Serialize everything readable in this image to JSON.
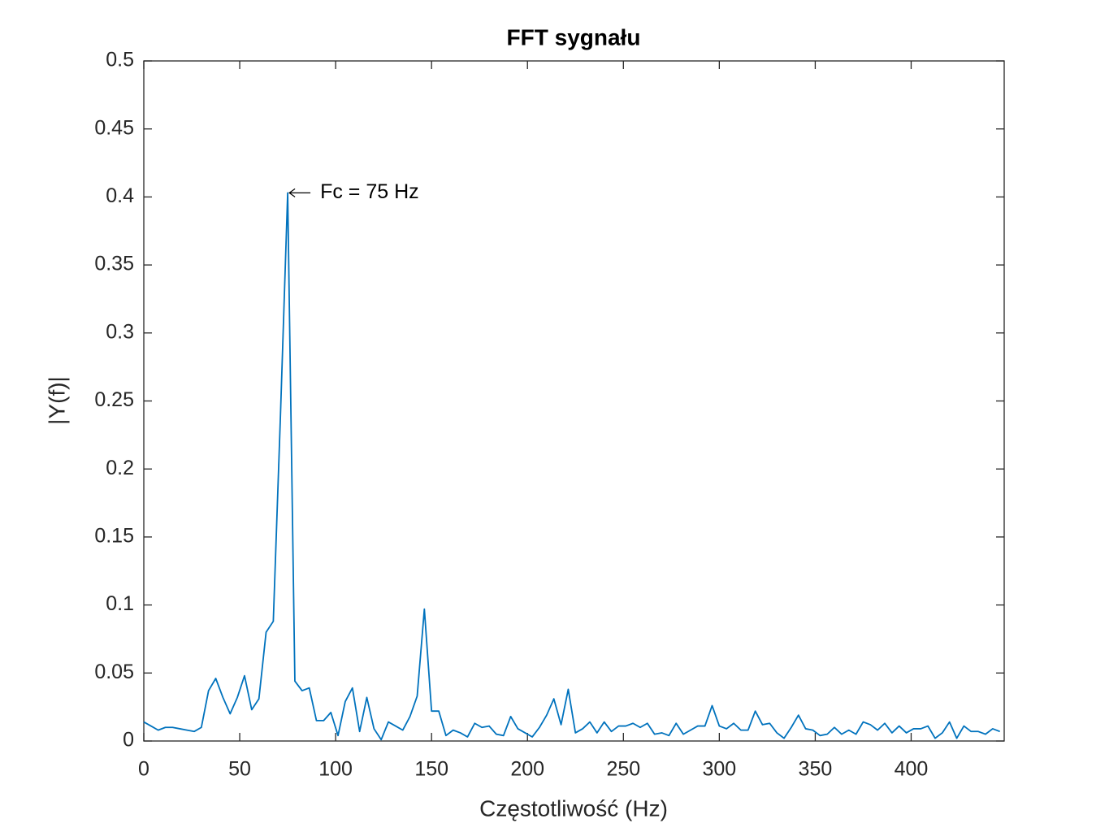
{
  "chart_data": {
    "type": "line",
    "title": "FFT sygnału",
    "x_label": "Częstotliwość (Hz)",
    "y_label": "|Y(f)|",
    "x": [
      0,
      3.75,
      7.5,
      11.25,
      15,
      18.75,
      22.5,
      26.25,
      30,
      33.75,
      37.5,
      41.25,
      45,
      48.75,
      52.5,
      56.25,
      60,
      63.75,
      67.5,
      71.25,
      75,
      78.75,
      82.5,
      86.25,
      90,
      93.75,
      97.5,
      101.25,
      105,
      108.75,
      112.5,
      116.25,
      120,
      123.75,
      127.5,
      131.25,
      135,
      138.75,
      142.5,
      146.25,
      150,
      153.75,
      157.5,
      161.25,
      165,
      168.75,
      172.5,
      176.25,
      180,
      183.75,
      187.5,
      191.25,
      195,
      198.75,
      202.5,
      206.25,
      210,
      213.75,
      217.5,
      221.25,
      225,
      228.75,
      232.5,
      236.25,
      240,
      243.75,
      247.5,
      251.25,
      255,
      258.75,
      262.5,
      266.25,
      270,
      273.75,
      277.5,
      281.25,
      285,
      288.75,
      292.5,
      296.25,
      300,
      303.75,
      307.5,
      311.25,
      315,
      318.75,
      322.5,
      326.25,
      330,
      333.75,
      337.5,
      341.25,
      345,
      348.75,
      352.5,
      356.25,
      360,
      363.75,
      367.5,
      371.25,
      375,
      378.75,
      382.5,
      386.25,
      390,
      393.75,
      397.5,
      401.25,
      405,
      408.75,
      412.5,
      416.25,
      420,
      423.75,
      427.5,
      431.25,
      435,
      438.75,
      442.5,
      446.25
    ],
    "series": [
      {
        "color": "#0072bd",
        "values": [
          0.014,
          0.011,
          0.008,
          0.01,
          0.01,
          0.009,
          0.008,
          0.007,
          0.01,
          0.037,
          0.046,
          0.032,
          0.02,
          0.032,
          0.048,
          0.023,
          0.031,
          0.08,
          0.088,
          0.24,
          0.403,
          0.044,
          0.037,
          0.039,
          0.015,
          0.015,
          0.021,
          0.004,
          0.029,
          0.039,
          0.007,
          0.032,
          0.009,
          0.001,
          0.014,
          0.011,
          0.008,
          0.018,
          0.033,
          0.097,
          0.022,
          0.022,
          0.004,
          0.008,
          0.006,
          0.003,
          0.013,
          0.01,
          0.011,
          0.005,
          0.004,
          0.018,
          0.009,
          0.006,
          0.003,
          0.01,
          0.019,
          0.031,
          0.012,
          0.038,
          0.006,
          0.009,
          0.014,
          0.006,
          0.014,
          0.007,
          0.011,
          0.011,
          0.013,
          0.01,
          0.013,
          0.005,
          0.006,
          0.004,
          0.013,
          0.005,
          0.008,
          0.011,
          0.011,
          0.026,
          0.011,
          0.009,
          0.013,
          0.008,
          0.008,
          0.022,
          0.012,
          0.013,
          0.006,
          0.002,
          0.01,
          0.019,
          0.009,
          0.008,
          0.004,
          0.005,
          0.01,
          0.005,
          0.008,
          0.005,
          0.014,
          0.012,
          0.008,
          0.013,
          0.006,
          0.011,
          0.006,
          0.009,
          0.009,
          0.011,
          0.002,
          0.006,
          0.014,
          0.002,
          0.011,
          0.007,
          0.007,
          0.005,
          0.009,
          0.007
        ]
      }
    ],
    "annotation": {
      "text": "Fc = 75 Hz",
      "x": 75,
      "y": 0.403
    },
    "xlim": [
      0,
      448.5
    ],
    "xticks": [
      0,
      50,
      100,
      150,
      200,
      250,
      300,
      350,
      400
    ],
    "ylim": [
      0,
      0.5
    ],
    "yticks": [
      0,
      0.05,
      0.1,
      0.15,
      0.2,
      0.25,
      0.3,
      0.35,
      0.4,
      0.45,
      0.5
    ],
    "grid": false
  }
}
